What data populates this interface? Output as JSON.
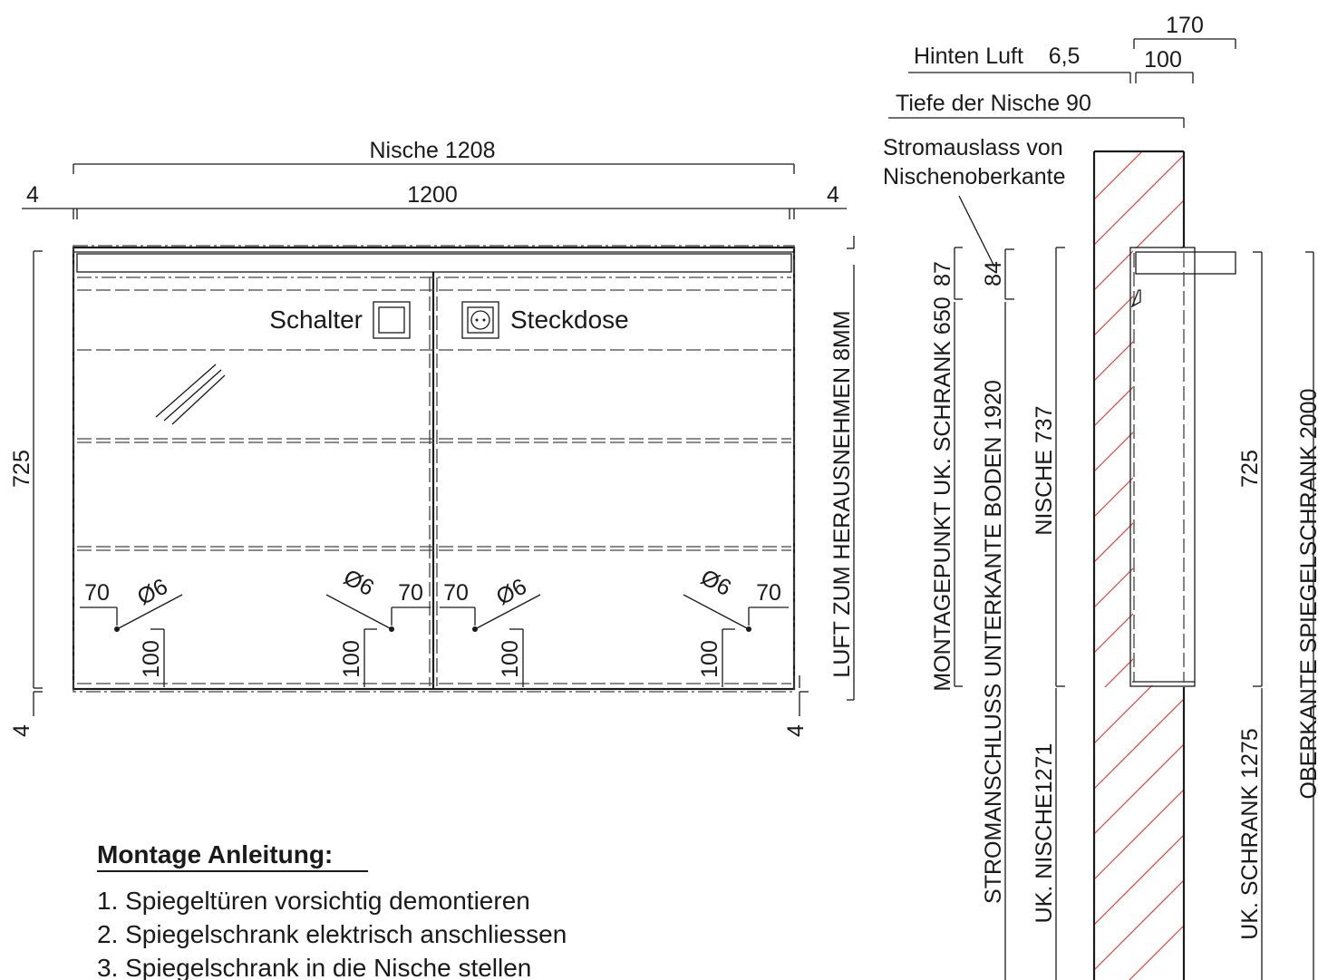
{
  "front": {
    "niche_dim": "Nische 1208",
    "width_dim": "1200",
    "gap_left": "4",
    "gap_right": "4",
    "height_dim": "725",
    "gap_bottom_left": "4",
    "gap_bottom_right": "4",
    "air_label": "LUFT ZUM HERAUSNEHMEN  8MM",
    "switch_label": "Schalter",
    "socket_label": "Steckdose",
    "hole_offset": "70",
    "hole_diameter": "Ø6",
    "hole_height": "100"
  },
  "side": {
    "dim_170": "170",
    "dim_100": "100",
    "air_back": "Hinten Luft    6,5",
    "depth_niche": "Tiefe der Nische 90",
    "outlet_note_1": "Stromauslass von",
    "outlet_note_2": "Nischenoberkante",
    "dim_87": "87",
    "dim_84": "84",
    "mount_point": "MONTAGEPUNKT UK. SCHRANK 650",
    "power_conn": "STROMANSCHLUSS UNTERKANTE BODEN 1920",
    "niche_737": "NISCHE 737",
    "uk_niche": "UK. NISCHE1271",
    "dim_725": "725",
    "uk_cabinet": "UK. SCHRANK 1275",
    "top_cabinet": "OBERKANTE SPIEGELSCHRANK 2000"
  },
  "instructions": {
    "title": "Montage Anleitung:",
    "steps": [
      "1. Spiegeltüren vorsichtig demontieren",
      "2. Spiegelschrank elektrisch anschliessen",
      "3. Spiegelschrank in die Nische stellen"
    ]
  }
}
